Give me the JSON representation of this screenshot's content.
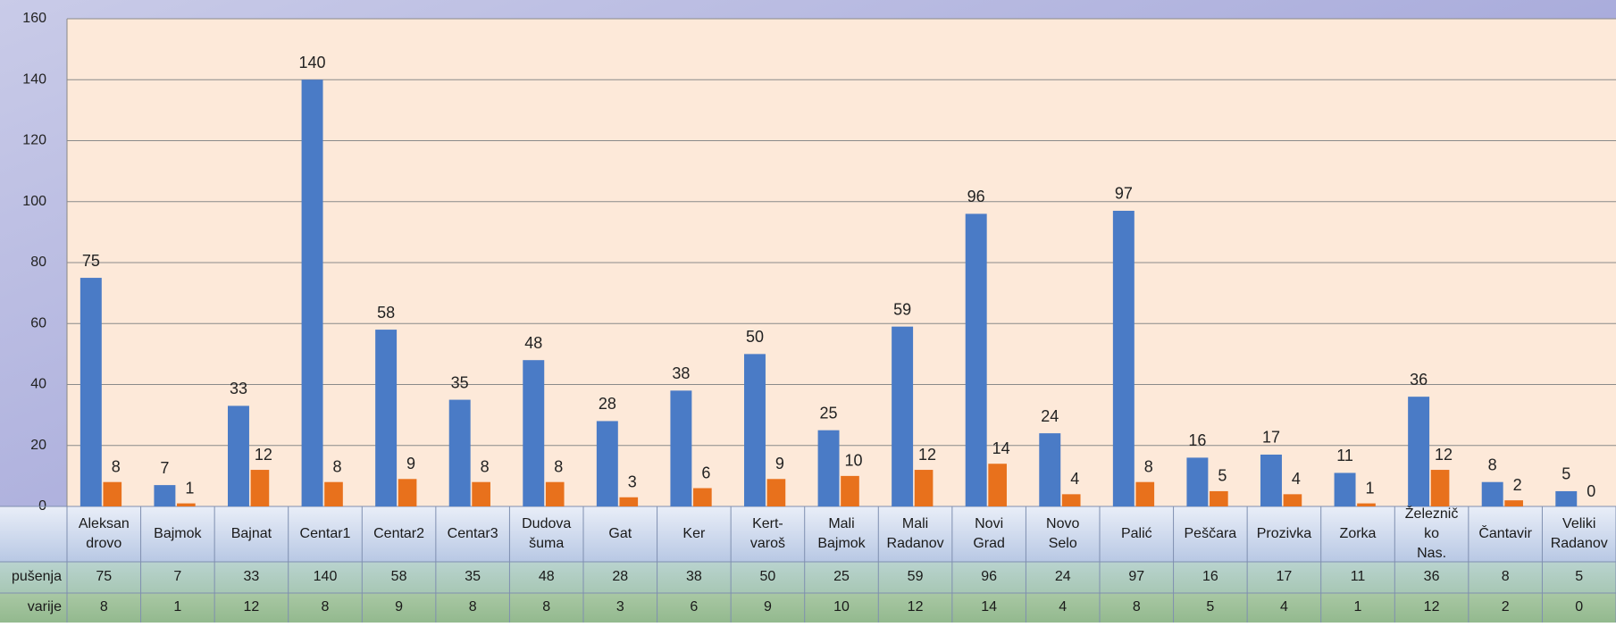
{
  "chart_data": {
    "type": "bar",
    "categories": [
      "Aleksan drovo",
      "Bajmok",
      "Bajnat",
      "Centar1",
      "Centar2",
      "Centar3",
      "Dudova šuma",
      "Gat",
      "Ker",
      "Kert- varoš",
      "Mali Bajmok",
      "Mali Radanov",
      "Novi Grad",
      "Novo Selo",
      "Palić",
      "Peščara",
      "Prozivka",
      "Zorka",
      "Železnič ko Nas.",
      "Čantavir",
      "Veliki Radanov"
    ],
    "series": [
      {
        "name": "pušenja",
        "color": "#4a7bc6",
        "values": [
          75,
          7,
          33,
          140,
          58,
          35,
          48,
          28,
          38,
          50,
          25,
          59,
          96,
          24,
          97,
          16,
          17,
          11,
          36,
          8,
          5
        ]
      },
      {
        "name": "varije",
        "color": "#e8711c",
        "values": [
          8,
          1,
          12,
          8,
          9,
          8,
          8,
          3,
          6,
          9,
          10,
          12,
          14,
          4,
          8,
          5,
          4,
          1,
          12,
          2,
          0
        ]
      }
    ],
    "ylim": [
      0,
      160
    ],
    "yticks": [
      0,
      20,
      40,
      60,
      80,
      100,
      120,
      140,
      160
    ],
    "grid": true
  }
}
